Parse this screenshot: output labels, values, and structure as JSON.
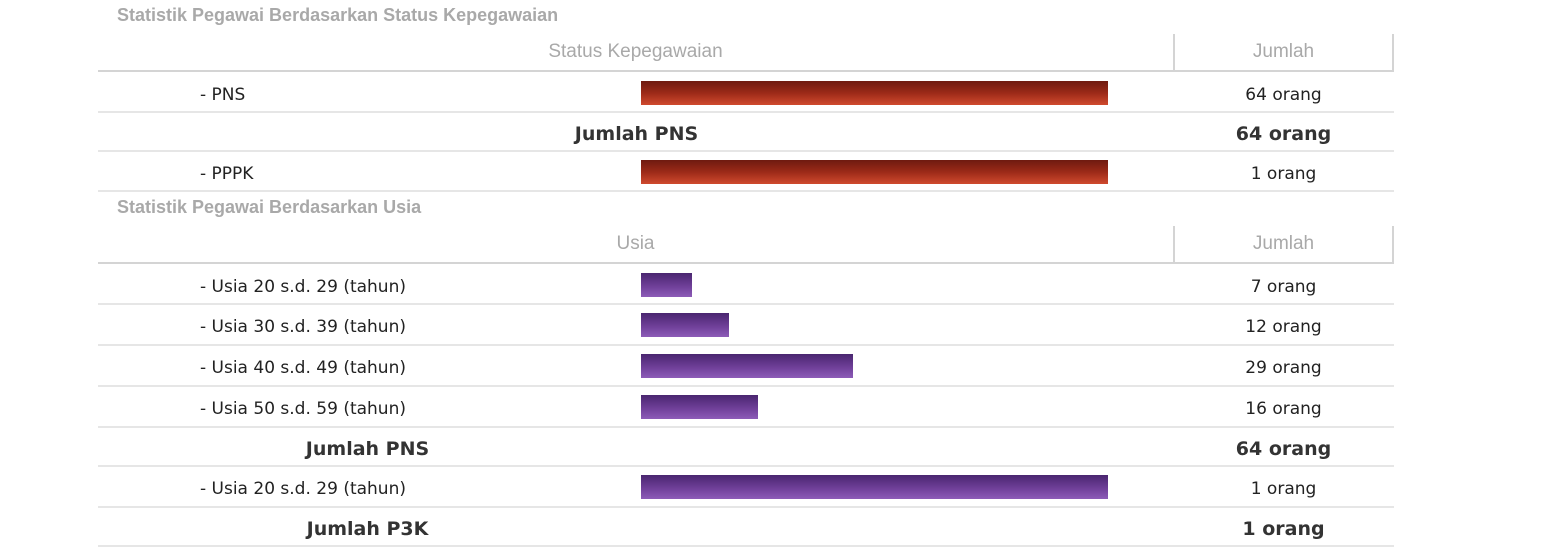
{
  "status": {
    "title": "Statistik Pegawai Berdasarkan Status Kepegawaian",
    "col_main": "Status Kepegawaian",
    "col_count": "Jumlah",
    "rows": [
      {
        "label": "- PNS",
        "count": "64 orang",
        "value": 64,
        "bar_fraction": 1.0
      },
      {
        "label": "Jumlah PNS",
        "count": "64 orang"
      },
      {
        "label": "- PPPK",
        "count": "1 orang",
        "value": 1,
        "bar_fraction": 1.0
      }
    ],
    "bar_color": "#b03320"
  },
  "age": {
    "title": "Statistik Pegawai Berdasarkan Usia",
    "col_main": "Usia",
    "col_count": "Jumlah",
    "rows": [
      {
        "label": "- Usia 20 s.d. 29 (tahun)",
        "count": "7 orang",
        "value": 7,
        "bar_fraction": 0.109
      },
      {
        "label": "- Usia 30 s.d. 39 (tahun)",
        "count": "12 orang",
        "value": 12,
        "bar_fraction": 0.1875
      },
      {
        "label": "- Usia 40 s.d. 49 (tahun)",
        "count": "29 orang",
        "value": 29,
        "bar_fraction": 0.453
      },
      {
        "label": "- Usia 50 s.d. 59 (tahun)",
        "count": "16 orang",
        "value": 16,
        "bar_fraction": 0.25
      },
      {
        "label": "Jumlah PNS",
        "count": "64 orang"
      },
      {
        "label": "- Usia 20 s.d. 29 (tahun)",
        "count": "1 orang",
        "value": 1,
        "bar_fraction": 1.0
      },
      {
        "label": "Jumlah P3K",
        "count": "1 orang"
      }
    ],
    "bar_color": "#6f3f98"
  }
}
